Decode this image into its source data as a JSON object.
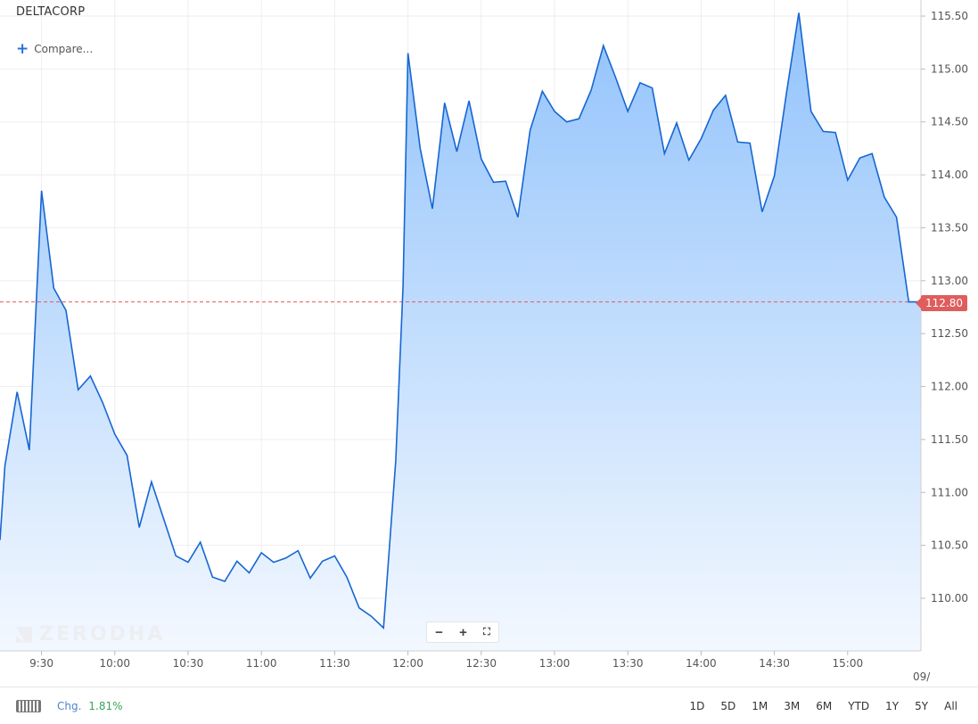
{
  "header": {
    "symbol": "DELTACORP",
    "compare_label": "Compare...",
    "compare_icon": "plus-icon"
  },
  "watermark": {
    "text": "ZERODHA"
  },
  "zoom_controls": {
    "zoom_out": "−",
    "zoom_in": "+",
    "fullscreen": "⛶"
  },
  "price_badge": {
    "value": "112.80",
    "color": "#e05d5d"
  },
  "footer": {
    "chg_label": "Chg.",
    "chg_value": "1.81%",
    "ranges": [
      "1D",
      "5D",
      "1M",
      "3M",
      "6M",
      "YTD",
      "1Y",
      "5Y",
      "All"
    ]
  },
  "colors": {
    "line": "#1666d3",
    "fill_top": "#92c3fb",
    "fill_bottom": "#f3f8ff",
    "ref_line": "#e05d5d",
    "grid": "#eeeeee"
  },
  "chart_data": {
    "type": "area",
    "title": "DELTACORP",
    "x_tick_labels": [
      "9:30",
      "10:00",
      "10:30",
      "11:00",
      "11:30",
      "12:00",
      "12:30",
      "13:00",
      "13:30",
      "14:00",
      "14:30",
      "15:00",
      "09/"
    ],
    "x_tick_minutes": [
      570,
      600,
      630,
      660,
      690,
      720,
      750,
      780,
      810,
      840,
      870,
      900,
      931
    ],
    "y_tick_labels": [
      "115.50",
      "115.00",
      "114.50",
      "114.00",
      "113.50",
      "113.00",
      "112.50",
      "112.00",
      "111.50",
      "111.00",
      "110.50",
      "110.00"
    ],
    "ylim": [
      109.5,
      115.6
    ],
    "xlim_minutes": [
      553,
      930
    ],
    "reference_line": 112.8,
    "grid": true,
    "series": [
      {
        "x_minutes": [
          553,
          555,
          560,
          565,
          570,
          575,
          580,
          585,
          590,
          595,
          600,
          605,
          610,
          615,
          620,
          625,
          630,
          635,
          640,
          645,
          650,
          655,
          660,
          665,
          670,
          675,
          680,
          685,
          690,
          695,
          700,
          705,
          710,
          715,
          718,
          720,
          725,
          730,
          735,
          740,
          745,
          750,
          755,
          760,
          765,
          770,
          775,
          780,
          785,
          790,
          795,
          800,
          805,
          810,
          815,
          820,
          825,
          830,
          835,
          840,
          845,
          850,
          855,
          860,
          865,
          870,
          875,
          880,
          885,
          890,
          895,
          900,
          905,
          910,
          915,
          920,
          925,
          930
        ],
        "values": [
          110.55,
          111.25,
          111.95,
          111.4,
          113.85,
          112.93,
          112.72,
          111.97,
          112.1,
          111.85,
          111.55,
          111.35,
          110.67,
          111.1,
          110.75,
          110.4,
          110.34,
          110.53,
          110.2,
          110.16,
          110.35,
          110.24,
          110.43,
          110.34,
          110.38,
          110.45,
          110.19,
          110.35,
          110.4,
          110.2,
          109.91,
          109.83,
          109.72,
          111.3,
          112.95,
          115.15,
          114.25,
          113.68,
          114.68,
          114.22,
          114.7,
          114.15,
          113.93,
          113.94,
          113.6,
          114.42,
          114.79,
          114.6,
          114.5,
          114.53,
          114.8,
          115.22,
          114.92,
          114.6,
          114.87,
          114.82,
          114.2,
          114.49,
          114.14,
          114.34,
          114.61,
          114.75,
          114.31,
          114.3,
          113.65,
          113.99,
          114.78,
          115.53,
          114.6,
          114.41,
          114.4,
          113.95,
          114.16,
          114.2,
          113.79,
          113.6,
          112.8,
          112.8
        ]
      }
    ]
  }
}
